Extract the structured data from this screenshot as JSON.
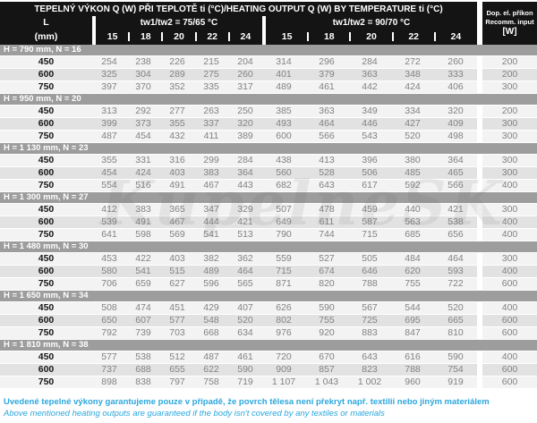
{
  "header": {
    "title": "TEPELNÝ VÝKON Q (W) PŘI TEPLOTĚ ti (°C)/HEATING OUTPUT Q (W) BY TEMPERATURE ti (°C)",
    "l_label": "L",
    "l_unit": "(mm)",
    "group1": "tw1/tw2 = 75/65 °C",
    "group2": "tw1/tw2 = 90/70 °C",
    "temps": [
      "15",
      "18",
      "20",
      "22",
      "24",
      "15",
      "18",
      "20",
      "22",
      "24"
    ],
    "right_line1": "Dop. el. příkon",
    "right_line2": "Recomm. input",
    "right_line3": "[W]"
  },
  "sections": [
    {
      "label": "H = 790 mm, N = 16",
      "rows": [
        {
          "l": "450",
          "v": [
            "254",
            "238",
            "226",
            "215",
            "204",
            "314",
            "296",
            "284",
            "272",
            "260"
          ],
          "w": "200"
        },
        {
          "l": "600",
          "v": [
            "325",
            "304",
            "289",
            "275",
            "260",
            "401",
            "379",
            "363",
            "348",
            "333"
          ],
          "w": "200"
        },
        {
          "l": "750",
          "v": [
            "397",
            "370",
            "352",
            "335",
            "317",
            "489",
            "461",
            "442",
            "424",
            "406"
          ],
          "w": "300"
        }
      ]
    },
    {
      "label": "H = 950 mm, N = 20",
      "rows": [
        {
          "l": "450",
          "v": [
            "313",
            "292",
            "277",
            "263",
            "250",
            "385",
            "363",
            "349",
            "334",
            "320"
          ],
          "w": "200"
        },
        {
          "l": "600",
          "v": [
            "399",
            "373",
            "355",
            "337",
            "320",
            "493",
            "464",
            "446",
            "427",
            "409"
          ],
          "w": "300"
        },
        {
          "l": "750",
          "v": [
            "487",
            "454",
            "432",
            "411",
            "389",
            "600",
            "566",
            "543",
            "520",
            "498"
          ],
          "w": "300"
        }
      ]
    },
    {
      "label": "H = 1 130 mm, N = 23",
      "rows": [
        {
          "l": "450",
          "v": [
            "355",
            "331",
            "316",
            "299",
            "284",
            "438",
            "413",
            "396",
            "380",
            "364"
          ],
          "w": "300"
        },
        {
          "l": "600",
          "v": [
            "454",
            "424",
            "403",
            "383",
            "364",
            "560",
            "528",
            "506",
            "485",
            "465"
          ],
          "w": "300"
        },
        {
          "l": "750",
          "v": [
            "554",
            "516",
            "491",
            "467",
            "443",
            "682",
            "643",
            "617",
            "592",
            "566"
          ],
          "w": "400"
        }
      ]
    },
    {
      "label": "H = 1 300 mm, N = 27",
      "rows": [
        {
          "l": "450",
          "v": [
            "412",
            "383",
            "365",
            "347",
            "329",
            "507",
            "478",
            "459",
            "440",
            "421"
          ],
          "w": "300"
        },
        {
          "l": "600",
          "v": [
            "539",
            "491",
            "467",
            "444",
            "421",
            "649",
            "611",
            "587",
            "563",
            "538"
          ],
          "w": "400"
        },
        {
          "l": "750",
          "v": [
            "641",
            "598",
            "569",
            "541",
            "513",
            "790",
            "744",
            "715",
            "685",
            "656"
          ],
          "w": "400"
        }
      ]
    },
    {
      "label": "H = 1 480 mm, N = 30",
      "rows": [
        {
          "l": "450",
          "v": [
            "453",
            "422",
            "403",
            "382",
            "362",
            "559",
            "527",
            "505",
            "484",
            "464"
          ],
          "w": "300"
        },
        {
          "l": "600",
          "v": [
            "580",
            "541",
            "515",
            "489",
            "464",
            "715",
            "674",
            "646",
            "620",
            "593"
          ],
          "w": "400"
        },
        {
          "l": "750",
          "v": [
            "706",
            "659",
            "627",
            "596",
            "565",
            "871",
            "820",
            "788",
            "755",
            "722"
          ],
          "w": "600"
        }
      ]
    },
    {
      "label": "H = 1 650 mm, N = 34",
      "rows": [
        {
          "l": "450",
          "v": [
            "508",
            "474",
            "451",
            "429",
            "407",
            "626",
            "590",
            "567",
            "544",
            "520"
          ],
          "w": "400"
        },
        {
          "l": "600",
          "v": [
            "650",
            "607",
            "577",
            "548",
            "520",
            "802",
            "755",
            "725",
            "695",
            "665"
          ],
          "w": "600"
        },
        {
          "l": "750",
          "v": [
            "792",
            "739",
            "703",
            "668",
            "634",
            "976",
            "920",
            "883",
            "847",
            "810"
          ],
          "w": "600"
        }
      ]
    },
    {
      "label": "H = 1 810 mm, N = 38",
      "rows": [
        {
          "l": "450",
          "v": [
            "577",
            "538",
            "512",
            "487",
            "461",
            "720",
            "670",
            "643",
            "616",
            "590"
          ],
          "w": "400"
        },
        {
          "l": "600",
          "v": [
            "737",
            "688",
            "655",
            "622",
            "590",
            "909",
            "857",
            "823",
            "788",
            "754"
          ],
          "w": "600"
        },
        {
          "l": "750",
          "v": [
            "898",
            "838",
            "797",
            "758",
            "719",
            "1 107",
            "1 043",
            "1 002",
            "960",
            "919"
          ],
          "w": "600"
        }
      ]
    }
  ],
  "footer": {
    "cz": "Uvedené tepelné výkony garantujeme pouze v případě, že povrch tělesa není překryt např. textilií nebo jiným materiálem",
    "en": "Above mentioned heating outputs are guaranteed if the body isn't covered by any textiles or materials"
  },
  "watermark": "KupelneSK",
  "colors": {
    "header_bg": "#141414",
    "section_bg": "#9d9d9d",
    "row_light": "#f3f3f3",
    "row_dark": "#e2e2e2",
    "value_text": "#828282",
    "footer_blue": "#2ba7dd"
  }
}
